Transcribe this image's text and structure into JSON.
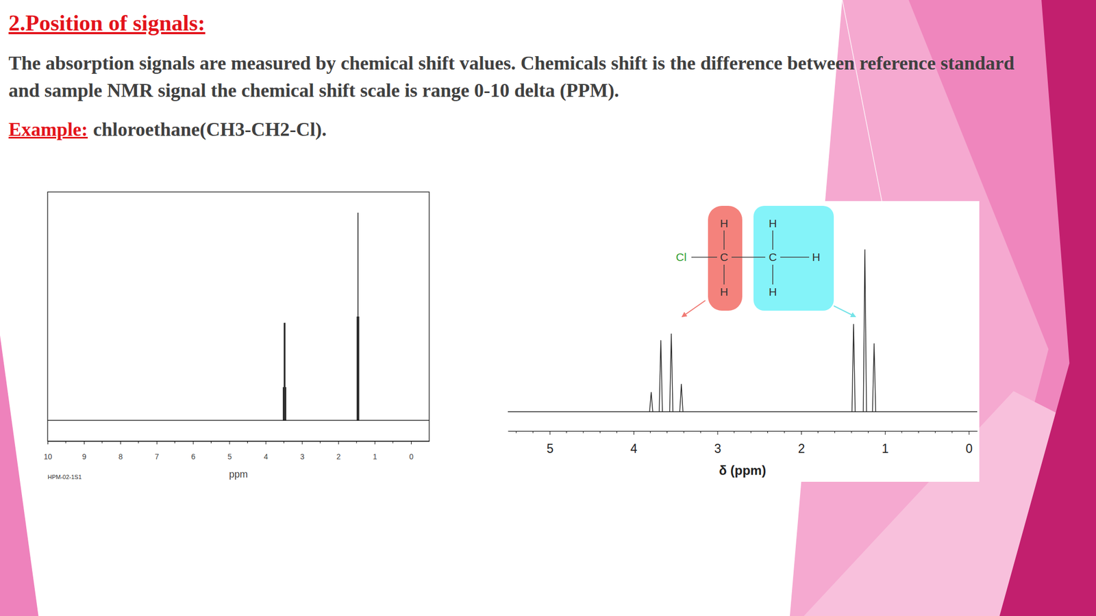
{
  "slide": {
    "heading": "2.Position of signals:",
    "paragraph": "The absorption signals are measured by chemical shift values. Chemicals shift is the difference between reference standard and sample NMR signal the chemical shift scale is range 0-10 delta (PPM).",
    "example_label": "Example:",
    "example_text": "chloroethane(CH3-CH2-Cl)."
  },
  "chart_data": [
    {
      "type": "spectrum",
      "x": [
        3.515,
        3.492,
        3.468,
        3.445,
        1.483,
        1.46,
        1.437
      ],
      "values": [
        16,
        47,
        47,
        16,
        50,
        100,
        50
      ],
      "xlim": [
        10,
        -0.5
      ],
      "xticks": [
        10,
        9,
        8,
        7,
        6,
        5,
        4,
        3,
        2,
        1,
        0
      ],
      "minor_xticks": [
        9.5,
        8.5,
        7.5,
        6.5,
        5.5,
        4.5,
        3.5,
        2.5,
        1.5,
        0.5
      ],
      "ylim": [
        -10,
        110
      ],
      "x_label": "ppm",
      "caption": "HPM-02-1S1",
      "tick_labels": "x",
      "color": "#000000",
      "marker": "stick"
    },
    {
      "type": "spectrum",
      "x": [
        3.79,
        3.675,
        3.55,
        3.43,
        1.375,
        1.24,
        1.13
      ],
      "values": [
        12,
        44,
        48,
        17,
        54,
        100,
        42
      ],
      "xlim": [
        5.5,
        -0.1
      ],
      "xticks": [
        5,
        4,
        3,
        2,
        1,
        0
      ],
      "minor_xticks": [
        5.4,
        5.2,
        4.8,
        4.6,
        4.4,
        4.2,
        3.8,
        3.6,
        3.4,
        3.2,
        2.8,
        2.6,
        2.4,
        2.2,
        1.8,
        1.6,
        1.4,
        1.2,
        0.8,
        0.6,
        0.4,
        0.2
      ],
      "ylim": [
        0,
        130
      ],
      "x_label": "δ (ppm)",
      "tick_labels": "x",
      "color": "#222222",
      "marker": "peak",
      "structure": {
        "chain": [
          "Cl",
          "C",
          "C",
          "H"
        ],
        "above": [
          "H",
          "H"
        ],
        "below": [
          "H",
          "H"
        ]
      }
    }
  ]
}
